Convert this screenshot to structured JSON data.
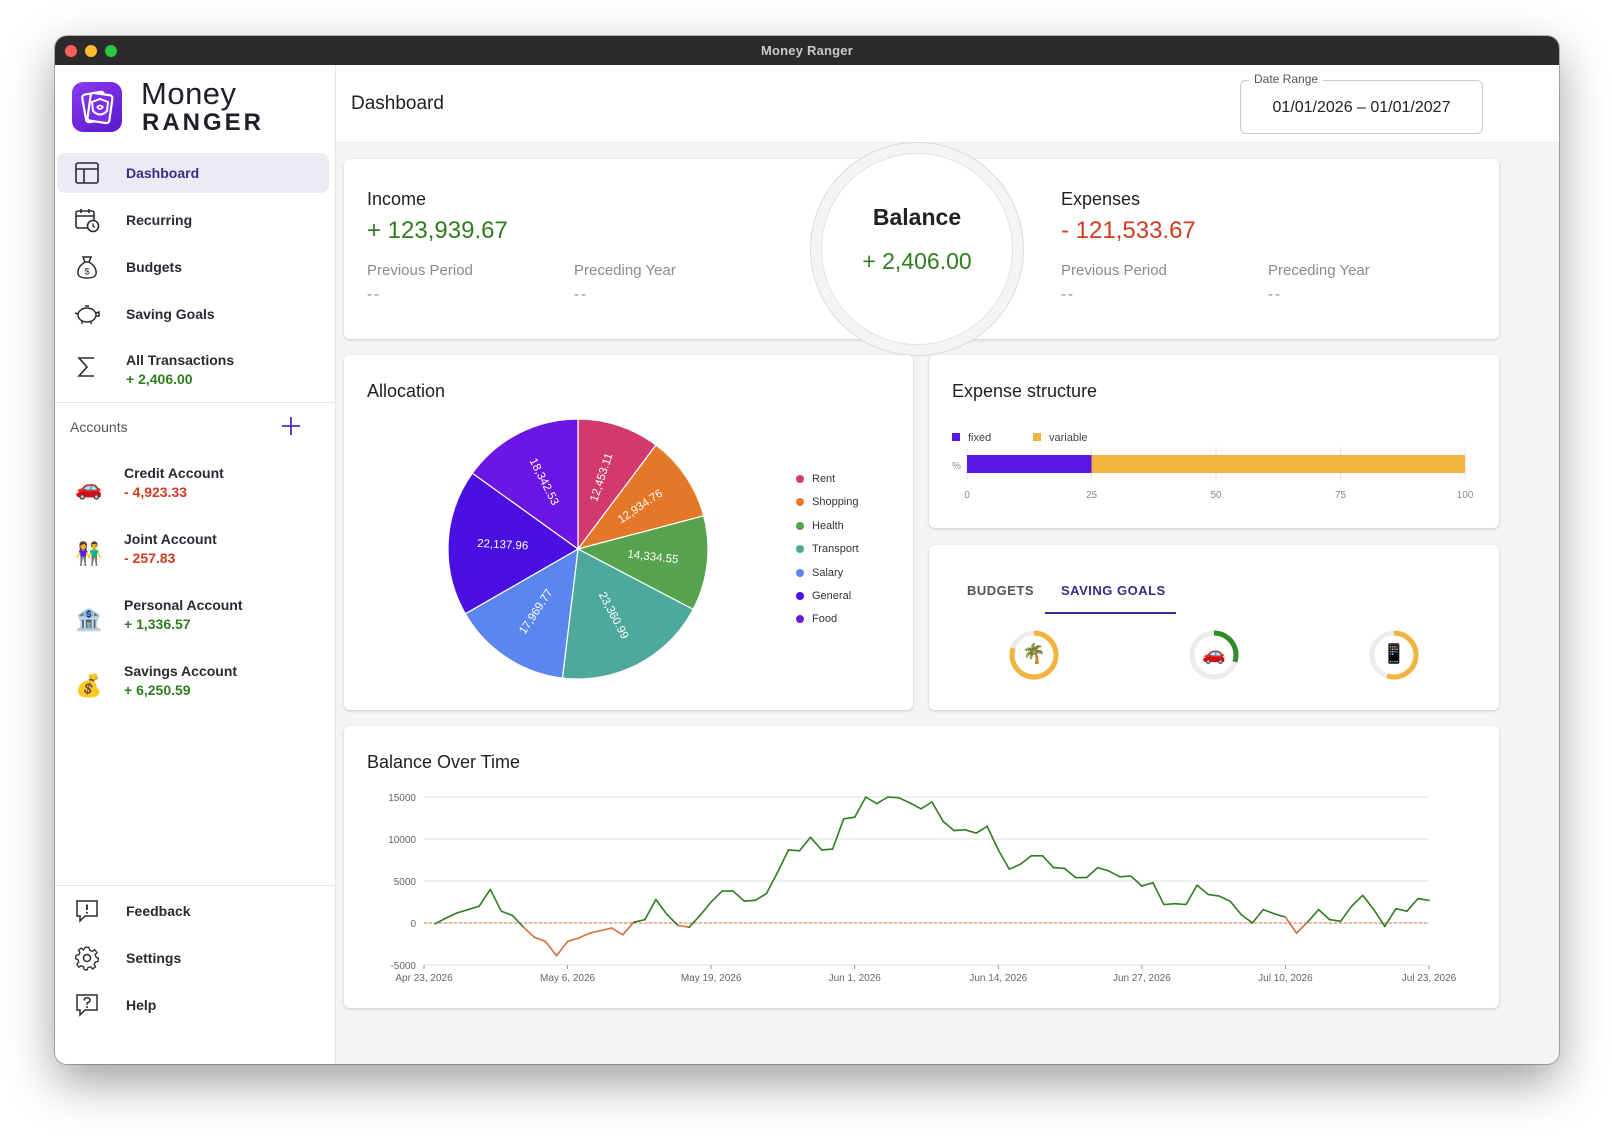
{
  "window": {
    "title": "Money Ranger"
  },
  "brand": {
    "line1": "Money",
    "line2": "RANGER"
  },
  "nav": [
    {
      "label": "Dashboard",
      "icon": "layout-icon",
      "active": true
    },
    {
      "label": "Recurring",
      "icon": "calendar-clock-icon"
    },
    {
      "label": "Budgets",
      "icon": "money-bag-icon"
    },
    {
      "label": "Saving Goals",
      "icon": "piggy-bank-icon"
    },
    {
      "label": "All Transactions",
      "icon": "sigma-icon",
      "value": "+ 2,406.00"
    }
  ],
  "accounts": {
    "label": "Accounts",
    "items": [
      {
        "name": "Credit Account",
        "value": "- 4,923.33",
        "icon": "car-icon",
        "glyph": "🚗"
      },
      {
        "name": "Joint Account",
        "value": "- 257.83",
        "icon": "couple-icon",
        "glyph": "👫"
      },
      {
        "name": "Personal Account",
        "value": "+ 1,336.57",
        "icon": "bank-icon",
        "glyph": "🏦"
      },
      {
        "name": "Savings Account",
        "value": "+ 6,250.59",
        "icon": "money-bag-icon",
        "glyph": "💰"
      }
    ]
  },
  "bottom_nav": [
    {
      "label": "Feedback",
      "icon": "feedback-icon"
    },
    {
      "label": "Settings",
      "icon": "gear-icon"
    },
    {
      "label": "Help",
      "icon": "help-icon"
    }
  ],
  "header": {
    "title": "Dashboard",
    "date_range_label": "Date Range",
    "date_range_value": "01/01/2026 – 01/01/2027"
  },
  "summary": {
    "income_label": "Income",
    "income_value": "+ 123,939.67",
    "expenses_label": "Expenses",
    "expenses_value": "- 121,533.67",
    "previous_period": "Previous Period",
    "preceding_year": "Preceding Year",
    "empty": "--",
    "balance_label": "Balance",
    "balance_value": "+ 2,406.00"
  },
  "allocation": {
    "title": "Allocation"
  },
  "expense_structure": {
    "title": "Expense structure",
    "legend": [
      {
        "label": "fixed",
        "color": "#5b16e8"
      },
      {
        "label": "variable",
        "color": "#f0b43f"
      }
    ],
    "y_label": "%",
    "ticks": [
      "0",
      "25",
      "50",
      "75",
      "100"
    ],
    "fixed_percent": 25
  },
  "goals": {
    "tabs": [
      "BUDGETS",
      "SAVING GOALS"
    ],
    "active_tab": "SAVING GOALS",
    "items": [
      {
        "icon": "palm-tree-icon",
        "glyph": "🌴",
        "progress": 0.8,
        "color": "#f0b43f"
      },
      {
        "icon": "car-icon",
        "glyph": "🚗",
        "progress": 0.3,
        "color": "#2f8c2a"
      },
      {
        "icon": "mobile-phone-icon",
        "glyph": "📱",
        "progress": 0.55,
        "color": "#f0b43f"
      }
    ]
  },
  "balance_over_time": {
    "title": "Balance Over Time"
  },
  "chart_data": [
    {
      "type": "pie",
      "title": "Allocation",
      "categories": [
        "Rent",
        "Shopping",
        "Health",
        "Transport",
        "Salary",
        "General",
        "Food"
      ],
      "values": [
        12453.11,
        12934.76,
        14334.55,
        23360.99,
        17969.77,
        22137.96,
        18342.53
      ],
      "value_labels": [
        "12,453.11",
        "12,934.76",
        "14,334.55",
        "23,360.99",
        "17,969.77",
        "22,137.96",
        "18,342.53"
      ],
      "colors": [
        "#d13a6b",
        "#e57729",
        "#56a24e",
        "#4da99c",
        "#5b86ee",
        "#4a0fe3",
        "#6c16e6"
      ],
      "legend": "right"
    },
    {
      "type": "line",
      "title": "Balance Over Time",
      "y_ticks": [
        15000,
        10000,
        5000,
        0,
        -5000
      ],
      "ylim": [
        -5000,
        15000
      ],
      "x_ticks": [
        "Apr 23, 2026",
        "May 6, 2026",
        "May 19, 2026",
        "Jun 1, 2026",
        "Jun 14, 2026",
        "Jun 27, 2026",
        "Jul 10, 2026",
        "Jul 23, 2026"
      ],
      "x_tick_days": [
        0,
        13,
        26,
        39,
        52,
        65,
        78,
        91
      ],
      "positive_color": "#2f7d1f",
      "negative_color": "#d36d3a",
      "zero_line_color": "#d36d3a",
      "grid": true,
      "series": [
        {
          "x": [
            1,
            2,
            3,
            4,
            5,
            6,
            7,
            8,
            9,
            10,
            11,
            12,
            13,
            14,
            15,
            16,
            17,
            18,
            19,
            20,
            21,
            22,
            23,
            24,
            25,
            26,
            27,
            28,
            29,
            30,
            31,
            32,
            33,
            34,
            35,
            36,
            37,
            38,
            39,
            40,
            41,
            42,
            43,
            44,
            45,
            46,
            47,
            48,
            49,
            50,
            51,
            52,
            53,
            54,
            55,
            56,
            57,
            58,
            59,
            60,
            61,
            62,
            63,
            64,
            65,
            66,
            67,
            68,
            69,
            70,
            71,
            72,
            73,
            74,
            75,
            76,
            77,
            78,
            79,
            80,
            81,
            82,
            83,
            84,
            85,
            86,
            87,
            88,
            89,
            90,
            91
          ],
          "values": [
            -100,
            600,
            1200,
            1600,
            2000,
            4000,
            1400,
            900,
            -500,
            -1700,
            -2200,
            -3900,
            -2200,
            -1800,
            -1200,
            -900,
            -600,
            -1400,
            100,
            400,
            2800,
            1000,
            -300,
            -500,
            900,
            2500,
            3800,
            3800,
            2600,
            2700,
            3500,
            6000,
            8700,
            8600,
            10200,
            8700,
            8800,
            12400,
            12600,
            15000,
            14200,
            15000,
            14900,
            14300,
            13600,
            14400,
            12100,
            11000,
            11100,
            10700,
            11500,
            8700,
            6400,
            7000,
            8000,
            8000,
            6600,
            6500,
            5400,
            5400,
            6600,
            6200,
            5500,
            5600,
            4400,
            4800,
            2200,
            2300,
            2200,
            4500,
            3400,
            3200,
            2600,
            1000,
            0,
            1600,
            1100,
            700,
            -1200,
            100,
            1600,
            400,
            200,
            2000,
            3300,
            1600,
            -400,
            1700,
            1400,
            2900,
            2700
          ]
        }
      ]
    }
  ]
}
